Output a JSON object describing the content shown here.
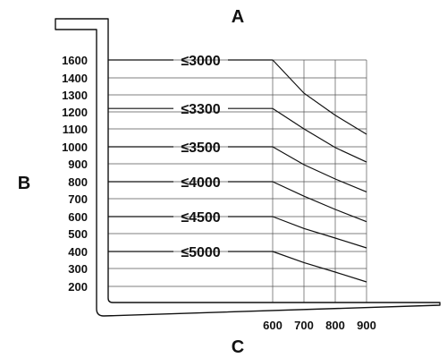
{
  "chart_data": {
    "type": "line",
    "title": "A",
    "ylabel": "B",
    "xlabel": "C",
    "y_ticks": [
      {
        "value": 1600,
        "label": "1600"
      },
      {
        "value": 1400,
        "label": "1400"
      },
      {
        "value": 1300,
        "label": "1300"
      },
      {
        "value": 1200,
        "label": "1200"
      },
      {
        "value": 1100,
        "label": "1100"
      },
      {
        "value": 1000,
        "label": "1000"
      },
      {
        "value": 900,
        "label": "900"
      },
      {
        "value": 800,
        "label": "800"
      },
      {
        "value": 700,
        "label": "700"
      },
      {
        "value": 600,
        "label": "600"
      },
      {
        "value": 500,
        "label": "500"
      },
      {
        "value": 400,
        "label": "400"
      },
      {
        "value": 300,
        "label": "300"
      },
      {
        "value": 200,
        "label": "200"
      }
    ],
    "x_ticks": [
      {
        "value": 600,
        "label": "600"
      },
      {
        "value": 700,
        "label": "700"
      },
      {
        "value": 800,
        "label": "800"
      },
      {
        "value": 900,
        "label": "900"
      }
    ],
    "grid": {
      "x_range": [
        600,
        900
      ],
      "y_range": [
        200,
        1600
      ]
    },
    "series": [
      {
        "name": "≤3000",
        "points": [
          {
            "x": 600,
            "y": 1600
          },
          {
            "x": 700,
            "y": 1310
          },
          {
            "x": 800,
            "y": 1180
          },
          {
            "x": 900,
            "y": 1070
          }
        ]
      },
      {
        "name": "≤3300",
        "points": [
          {
            "x": 600,
            "y": 1220
          },
          {
            "x": 700,
            "y": 1100
          },
          {
            "x": 800,
            "y": 995
          },
          {
            "x": 900,
            "y": 910
          }
        ]
      },
      {
        "name": "≤3500",
        "points": [
          {
            "x": 600,
            "y": 1000
          },
          {
            "x": 700,
            "y": 895
          },
          {
            "x": 800,
            "y": 815
          },
          {
            "x": 900,
            "y": 740
          }
        ]
      },
      {
        "name": "≤4000",
        "points": [
          {
            "x": 600,
            "y": 800
          },
          {
            "x": 700,
            "y": 715
          },
          {
            "x": 800,
            "y": 640
          },
          {
            "x": 900,
            "y": 570
          }
        ]
      },
      {
        "name": "≤4500",
        "points": [
          {
            "x": 600,
            "y": 600
          },
          {
            "x": 700,
            "y": 530
          },
          {
            "x": 800,
            "y": 475
          },
          {
            "x": 900,
            "y": 420
          }
        ]
      },
      {
        "name": "≤5000",
        "points": [
          {
            "x": 600,
            "y": 400
          },
          {
            "x": 700,
            "y": 335
          },
          {
            "x": 800,
            "y": 280
          },
          {
            "x": 900,
            "y": 225
          }
        ]
      }
    ]
  }
}
